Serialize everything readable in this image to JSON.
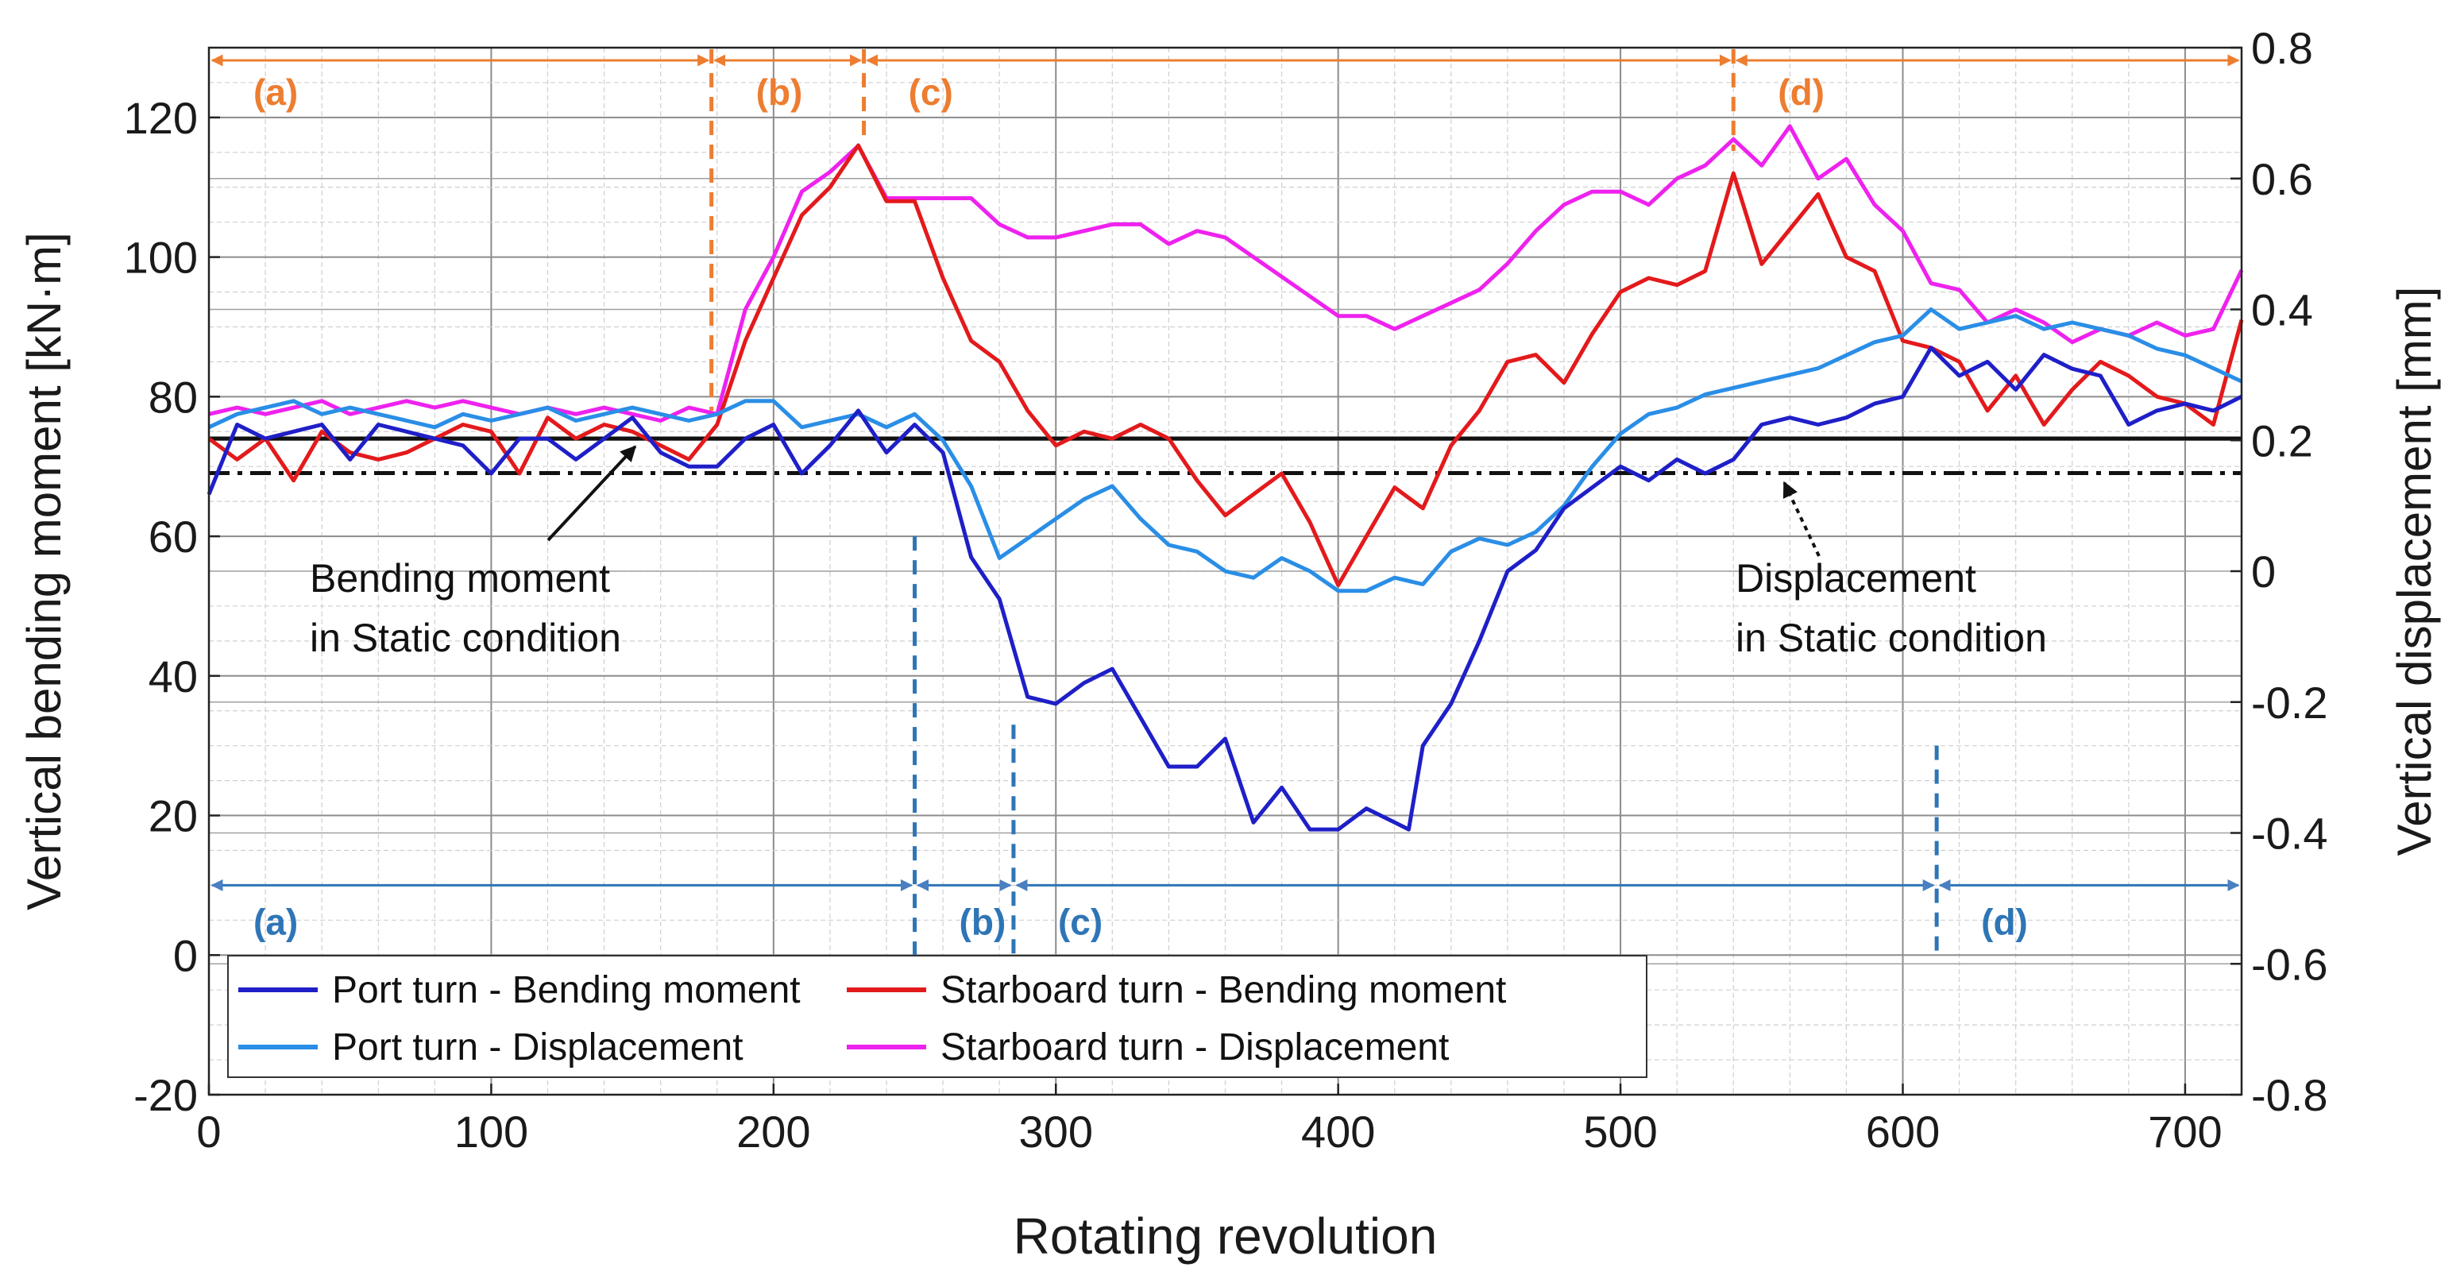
{
  "chart_data": {
    "type": "line",
    "xlabel": "Rotating revolution",
    "ylabel_left": "Vertical bending moment [kN·m]",
    "ylabel_right": "Vertical displacement [mm]",
    "xlim": [
      0,
      720
    ],
    "ylim_left": [
      -20,
      130
    ],
    "ylim_right": [
      -0.8,
      0.8
    ],
    "x_ticks": [
      0,
      100,
      200,
      300,
      400,
      500,
      600,
      700
    ],
    "y_left_ticks": [
      -20,
      0,
      20,
      40,
      60,
      80,
      100,
      120
    ],
    "y_right_ticks": [
      "-0.8",
      "-0.6",
      "-0.4",
      "-0.2",
      "0",
      "0.2",
      "0.4",
      "0.6",
      "0.8"
    ],
    "grid": true,
    "legend_position": "bottom-left",
    "colors": {
      "port_bm": "#1f1fc8",
      "starboard_bm": "#e31a1c",
      "port_disp": "#2a8ee6",
      "starboard_disp": "#ee22ee",
      "phase_starboard": "#ed7d31",
      "phase_port": "#2e75b6"
    },
    "series": [
      {
        "name": "Port turn - Bending moment",
        "axis": "left",
        "x": [
          0,
          10,
          20,
          30,
          40,
          50,
          60,
          70,
          80,
          90,
          100,
          110,
          120,
          130,
          140,
          150,
          160,
          170,
          180,
          190,
          200,
          210,
          220,
          230,
          240,
          250,
          260,
          270,
          280,
          290,
          300,
          310,
          320,
          330,
          340,
          350,
          360,
          370,
          380,
          390,
          400,
          410,
          420,
          425,
          430,
          440,
          450,
          460,
          470,
          480,
          490,
          500,
          510,
          520,
          530,
          540,
          550,
          560,
          570,
          580,
          590,
          600,
          610,
          620,
          630,
          640,
          650,
          660,
          670,
          680,
          690,
          700,
          710,
          720
        ],
        "values": [
          66,
          76,
          74,
          75,
          76,
          71,
          76,
          75,
          74,
          73,
          69,
          74,
          74,
          71,
          74,
          77,
          72,
          70,
          70,
          74,
          76,
          69,
          73,
          78,
          72,
          76,
          72,
          57,
          51,
          37,
          36,
          39,
          41,
          34,
          27,
          27,
          31,
          19,
          24,
          18,
          18,
          21,
          19,
          18,
          30,
          36,
          45,
          55,
          58,
          64,
          67,
          70,
          68,
          71,
          69,
          71,
          76,
          77,
          76,
          77,
          79,
          80,
          87,
          83,
          85,
          81,
          86,
          84,
          83,
          76,
          78,
          79,
          78,
          80
        ]
      },
      {
        "name": "Starboard turn - Bending moment",
        "axis": "left",
        "x": [
          0,
          10,
          20,
          30,
          40,
          50,
          60,
          70,
          80,
          90,
          100,
          110,
          120,
          130,
          140,
          150,
          160,
          170,
          180,
          190,
          200,
          210,
          220,
          230,
          240,
          250,
          260,
          270,
          280,
          290,
          300,
          310,
          320,
          330,
          340,
          350,
          360,
          370,
          380,
          390,
          400,
          410,
          420,
          430,
          440,
          450,
          460,
          470,
          480,
          490,
          500,
          510,
          520,
          530,
          540,
          550,
          560,
          570,
          580,
          590,
          600,
          610,
          620,
          630,
          640,
          650,
          660,
          670,
          680,
          690,
          700,
          710,
          720
        ],
        "values": [
          74,
          71,
          74,
          68,
          75,
          72,
          71,
          72,
          74,
          76,
          75,
          69,
          77,
          74,
          76,
          75,
          73,
          71,
          76,
          88,
          97,
          106,
          110,
          116,
          108,
          108,
          97,
          88,
          85,
          78,
          73,
          75,
          74,
          76,
          74,
          68,
          63,
          66,
          69,
          62,
          53,
          60,
          67,
          64,
          73,
          78,
          85,
          86,
          82,
          89,
          95,
          97,
          96,
          98,
          112,
          99,
          104,
          109,
          100,
          98,
          88,
          87,
          85,
          78,
          83,
          76,
          81,
          85,
          83,
          80,
          79,
          76,
          91
        ]
      },
      {
        "name": "Port turn - Displacement",
        "axis": "right",
        "x": [
          0,
          10,
          20,
          30,
          40,
          50,
          60,
          70,
          80,
          90,
          100,
          110,
          120,
          130,
          140,
          150,
          160,
          170,
          180,
          190,
          200,
          210,
          220,
          230,
          240,
          250,
          260,
          270,
          280,
          290,
          300,
          310,
          320,
          330,
          340,
          350,
          360,
          370,
          380,
          390,
          400,
          410,
          420,
          430,
          440,
          450,
          460,
          470,
          480,
          490,
          500,
          510,
          520,
          530,
          540,
          550,
          560,
          570,
          580,
          590,
          600,
          610,
          620,
          630,
          640,
          650,
          660,
          670,
          680,
          690,
          700,
          710,
          720
        ],
        "values": [
          0.22,
          0.24,
          0.25,
          0.26,
          0.24,
          0.25,
          0.24,
          0.23,
          0.22,
          0.24,
          0.23,
          0.24,
          0.25,
          0.23,
          0.24,
          0.25,
          0.24,
          0.23,
          0.24,
          0.26,
          0.26,
          0.22,
          0.23,
          0.24,
          0.22,
          0.24,
          0.2,
          0.13,
          0.02,
          0.05,
          0.08,
          0.11,
          0.13,
          0.08,
          0.04,
          0.03,
          0.0,
          -0.01,
          0.02,
          0.0,
          -0.03,
          -0.03,
          -0.01,
          -0.02,
          0.03,
          0.05,
          0.04,
          0.06,
          0.1,
          0.16,
          0.21,
          0.24,
          0.25,
          0.27,
          0.28,
          0.29,
          0.3,
          0.31,
          0.33,
          0.35,
          0.36,
          0.4,
          0.37,
          0.38,
          0.39,
          0.37,
          0.38,
          0.37,
          0.36,
          0.34,
          0.33,
          0.31,
          0.29
        ]
      },
      {
        "name": "Starboard turn - Displacement",
        "axis": "right",
        "x": [
          0,
          10,
          20,
          30,
          40,
          50,
          60,
          70,
          80,
          90,
          100,
          110,
          120,
          130,
          140,
          150,
          160,
          170,
          180,
          190,
          200,
          210,
          220,
          230,
          240,
          250,
          260,
          270,
          280,
          290,
          300,
          310,
          320,
          330,
          340,
          350,
          360,
          370,
          380,
          390,
          400,
          410,
          420,
          430,
          440,
          450,
          460,
          470,
          480,
          490,
          500,
          510,
          520,
          530,
          540,
          550,
          560,
          570,
          580,
          590,
          600,
          610,
          620,
          630,
          640,
          650,
          660,
          670,
          680,
          690,
          700,
          710,
          720
        ],
        "values": [
          0.24,
          0.25,
          0.24,
          0.25,
          0.26,
          0.24,
          0.25,
          0.26,
          0.25,
          0.26,
          0.25,
          0.24,
          0.25,
          0.24,
          0.25,
          0.24,
          0.23,
          0.25,
          0.24,
          0.4,
          0.48,
          0.58,
          0.61,
          0.65,
          0.57,
          0.57,
          0.57,
          0.57,
          0.53,
          0.51,
          0.51,
          0.52,
          0.53,
          0.53,
          0.5,
          0.52,
          0.51,
          0.48,
          0.45,
          0.42,
          0.39,
          0.39,
          0.37,
          0.39,
          0.41,
          0.43,
          0.47,
          0.52,
          0.56,
          0.58,
          0.58,
          0.56,
          0.6,
          0.62,
          0.66,
          0.62,
          0.68,
          0.6,
          0.63,
          0.56,
          0.52,
          0.44,
          0.43,
          0.38,
          0.4,
          0.38,
          0.35,
          0.37,
          0.36,
          0.38,
          0.36,
          0.37,
          0.46
        ]
      }
    ],
    "reference_lines": [
      {
        "label": "Bending moment in Static condition",
        "axis": "left",
        "value": 74,
        "style": "solid"
      },
      {
        "label": "Displacement in Static condition",
        "axis": "right",
        "value": 0.15,
        "style": "dashdot"
      }
    ],
    "phases_starboard": {
      "boundaries": [
        0,
        178,
        232,
        540,
        720
      ],
      "labels": [
        "(a)",
        "(b)",
        "(c)",
        "(d)"
      ]
    },
    "phases_port": {
      "boundaries": [
        0,
        250,
        285,
        612,
        720
      ],
      "labels": [
        "(a)",
        "(b)",
        "(c)",
        "(d)"
      ]
    },
    "annotations": {
      "bm_static_line1": "Bending moment",
      "bm_static_line2": "in Static condition",
      "disp_static_line1": "Displacement",
      "disp_static_line2": "in Static condition"
    }
  }
}
